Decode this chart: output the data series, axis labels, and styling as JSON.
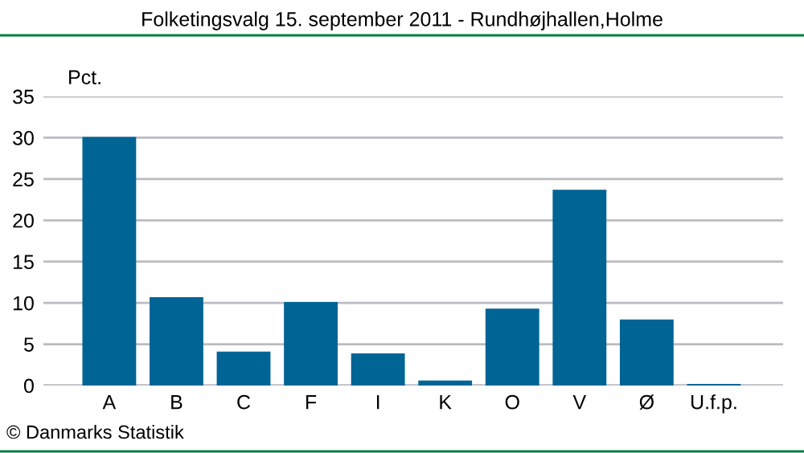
{
  "chart_data": {
    "type": "bar",
    "title": "Folketingsvalg 15. september 2011 - Rundhøjhallen,Holme",
    "ylabel": "Pct.",
    "categories": [
      "A",
      "B",
      "C",
      "F",
      "I",
      "K",
      "O",
      "V",
      "Ø",
      "U.f.p."
    ],
    "values": [
      30.1,
      10.7,
      4.1,
      10.1,
      3.9,
      0.6,
      9.3,
      23.7,
      8.0,
      0.2
    ],
    "color": "#006495",
    "ylim": [
      0,
      35
    ],
    "yticks": [
      0,
      5,
      10,
      15,
      20,
      25,
      30,
      35
    ],
    "grid": "y",
    "annotations": [
      "© Danmarks Statistik"
    ]
  }
}
